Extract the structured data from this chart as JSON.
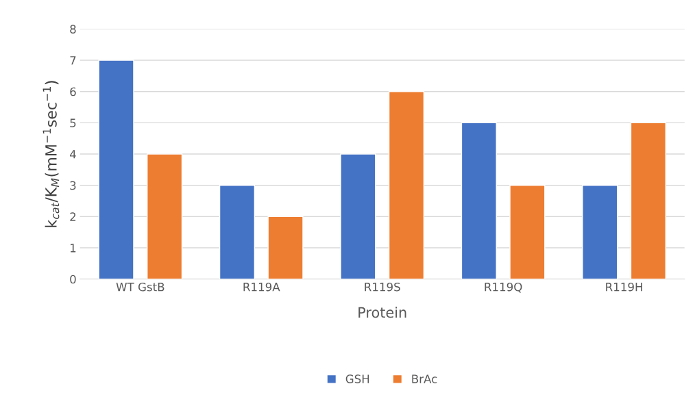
{
  "chart_data": {
    "type": "bar",
    "xlabel": "Protein",
    "ylabel": "k$_{cat}$/K$_{M}$(mM$^{−1}$sec$^{−1}$)",
    "categories": [
      "WT GstB",
      "R119A",
      "R119S",
      "R119Q",
      "R119H"
    ],
    "series": [
      {
        "name": "GSH",
        "color": "#4472c4",
        "values": [
          7,
          3,
          4,
          5,
          3
        ]
      },
      {
        "name": "BrAc",
        "color": "#ed7d31",
        "values": [
          4,
          2,
          6,
          3,
          5
        ]
      }
    ],
    "ylim": [
      0,
      8
    ],
    "yticks": [
      0,
      1,
      2,
      3,
      4,
      5,
      6,
      7,
      8
    ],
    "grid": "y",
    "legend": "bottom"
  }
}
